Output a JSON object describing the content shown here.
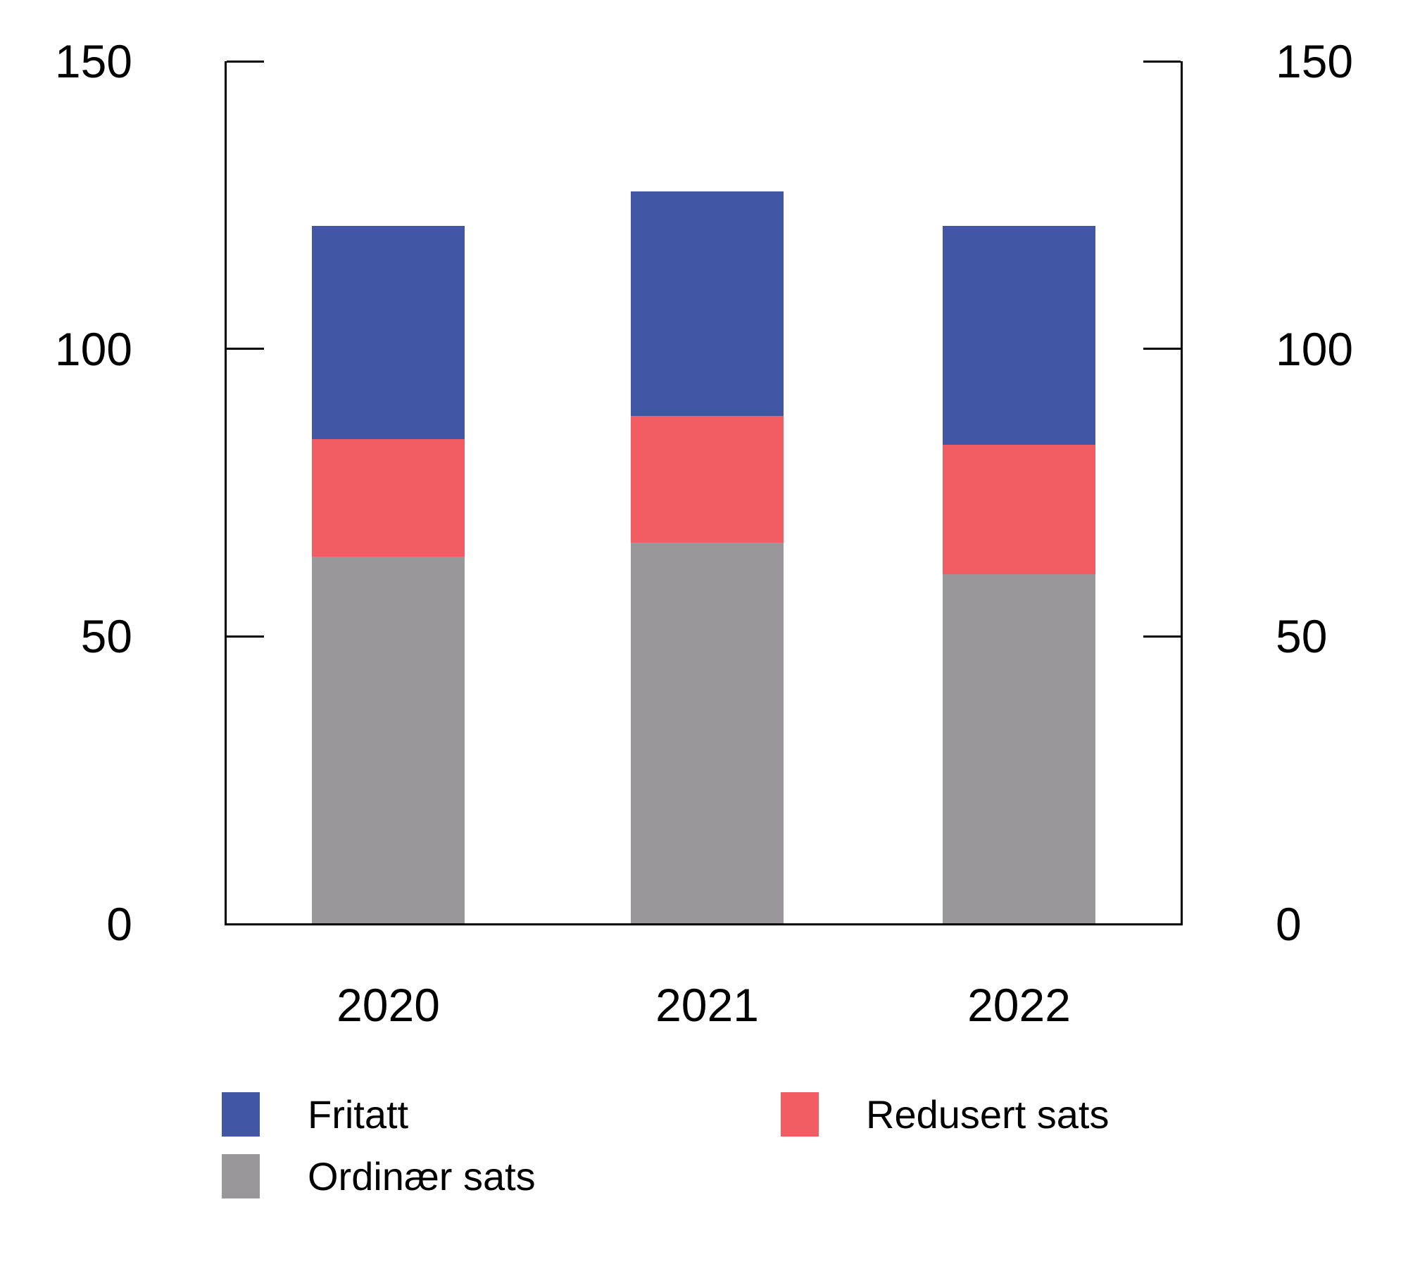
{
  "figure": {
    "kind": "stacked-bar-chart",
    "title": ""
  },
  "chart_data": {
    "type": "bar",
    "stacked": true,
    "categories": [
      "2020",
      "2021",
      "2022"
    ],
    "series": [
      {
        "name": "Ordinær sats",
        "color": "#999799",
        "values": [
          64,
          66.5,
          61
        ]
      },
      {
        "name": "Redusert sats",
        "color": "#f15d63",
        "values": [
          20.5,
          22,
          22.5
        ]
      },
      {
        "name": "Fritatt",
        "color": "#4156a4",
        "values": [
          37,
          39,
          38
        ]
      }
    ],
    "totals": [
      121.5,
      127.5,
      121.5
    ],
    "stack_order_bottom_to_top": [
      "Ordinær sats",
      "Redusert sats",
      "Fritatt"
    ],
    "ylim": [
      0,
      150
    ],
    "yticks": [
      0,
      50,
      100,
      150
    ],
    "ytick_labels": [
      "0",
      "50",
      "100",
      "150"
    ],
    "y_axis_sides": [
      "left",
      "right"
    ],
    "tick_style": "inward",
    "grid": false,
    "xlabel": "",
    "ylabel": "",
    "legend_position": "bottom",
    "legend": [
      {
        "label": "Fritatt",
        "color": "#4156a4"
      },
      {
        "label": "Redusert sats",
        "color": "#f15d63"
      },
      {
        "label": "Ordinær sats",
        "color": "#999799"
      }
    ]
  },
  "colors": {
    "background": "#ffffff",
    "axis": "#000000",
    "text": "#000000",
    "fritatt_blue": "#4156a4",
    "redusert_red": "#f15d63",
    "ordinaer_gray": "#999799"
  }
}
